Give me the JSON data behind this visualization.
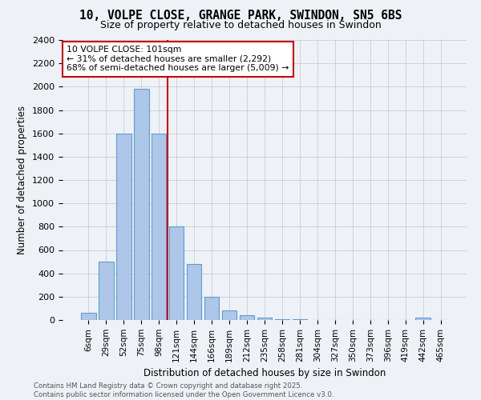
{
  "title_line1": "10, VOLPE CLOSE, GRANGE PARK, SWINDON, SN5 6BS",
  "title_line2": "Size of property relative to detached houses in Swindon",
  "xlabel": "Distribution of detached houses by size in Swindon",
  "ylabel": "Number of detached properties",
  "categories": [
    "6sqm",
    "29sqm",
    "52sqm",
    "75sqm",
    "98sqm",
    "121sqm",
    "144sqm",
    "166sqm",
    "189sqm",
    "212sqm",
    "235sqm",
    "258sqm",
    "281sqm",
    "304sqm",
    "327sqm",
    "350sqm",
    "373sqm",
    "396sqm",
    "419sqm",
    "442sqm",
    "465sqm"
  ],
  "values": [
    60,
    500,
    1600,
    1980,
    1600,
    800,
    480,
    200,
    80,
    40,
    20,
    10,
    5,
    2,
    1,
    0,
    0,
    0,
    0,
    20,
    0
  ],
  "bar_color": "#aec6e8",
  "bar_edge_color": "#5a9fd4",
  "vline_x": 4.5,
  "vline_color": "#cc0000",
  "annotation_title": "10 VOLPE CLOSE: 101sqm",
  "annotation_line1": "← 31% of detached houses are smaller (2,292)",
  "annotation_line2": "68% of semi-detached houses are larger (5,009) →",
  "annotation_box_color": "#ffffff",
  "annotation_box_edge": "#cc0000",
  "ylim": [
    0,
    2400
  ],
  "yticks": [
    0,
    200,
    400,
    600,
    800,
    1000,
    1200,
    1400,
    1600,
    1800,
    2000,
    2200,
    2400
  ],
  "footer_line1": "Contains HM Land Registry data © Crown copyright and database right 2025.",
  "footer_line2": "Contains public sector information licensed under the Open Government Licence v3.0.",
  "bg_color": "#eef2f7"
}
